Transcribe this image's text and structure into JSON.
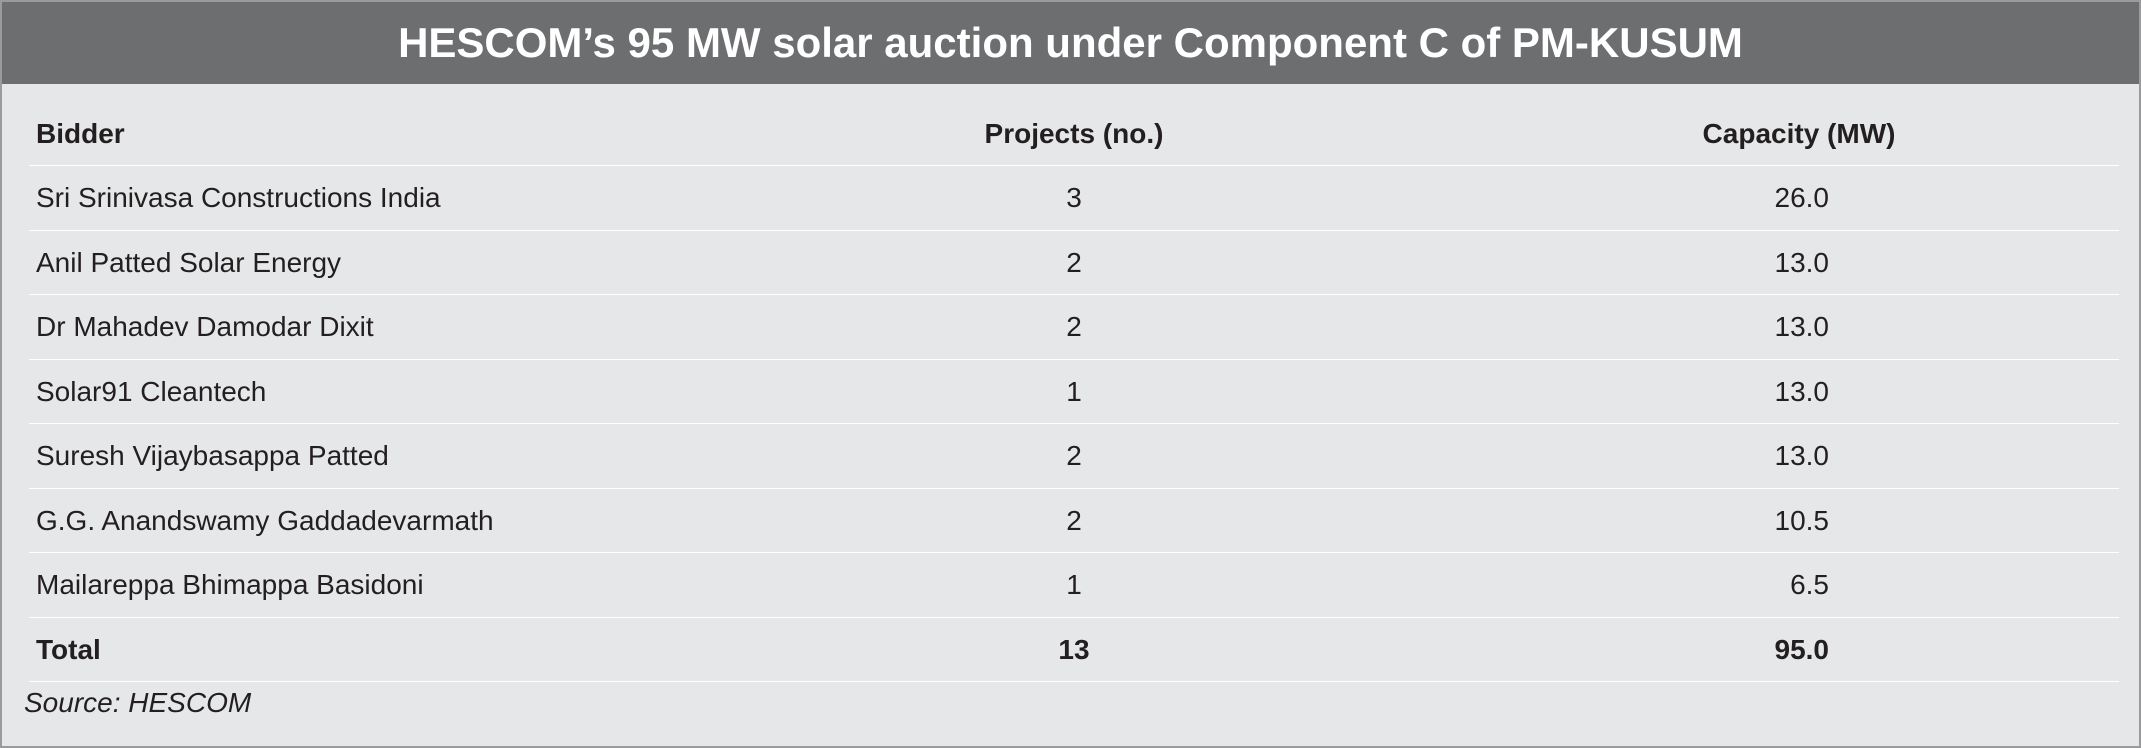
{
  "header": {
    "title": "HESCOM’s 95 MW solar auction under Component C of PM-KUSUM"
  },
  "table": {
    "columns": [
      "Bidder",
      "Projects (no.)",
      "Capacity (MW)"
    ],
    "rows": [
      [
        "Sri Srinivasa Constructions India",
        "3",
        "26.0"
      ],
      [
        "Anil Patted Solar Energy",
        "2",
        "13.0"
      ],
      [
        "Dr Mahadev Damodar Dixit",
        "2",
        "13.0"
      ],
      [
        "Solar91 Cleantech",
        "1",
        "13.0"
      ],
      [
        "Suresh Vijaybasappa Patted",
        "2",
        "13.0"
      ],
      [
        "G.G. Anandswamy Gaddadevarmath",
        "2",
        "10.5"
      ],
      [
        "Mailareppa Bhimappa Basidoni",
        "1",
        "6.5"
      ]
    ],
    "total": [
      "Total",
      "13",
      "95.0"
    ]
  },
  "source": "Source: HESCOM"
}
